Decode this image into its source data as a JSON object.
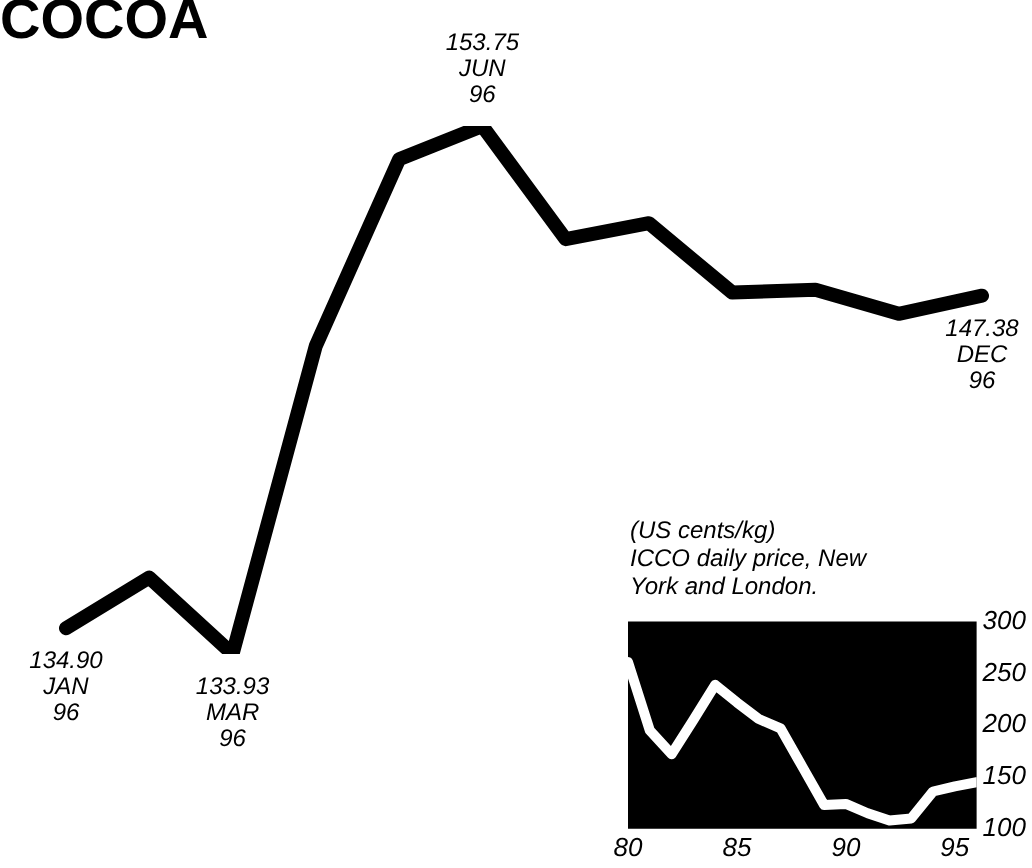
{
  "chart_data": [
    {
      "type": "line",
      "title": "COCOA",
      "color": "#000000",
      "tick_labels": false,
      "marker": "none",
      "categories": [
        "JAN 96",
        null,
        "MAR 96",
        null,
        null,
        "JUN 96",
        null,
        null,
        null,
        null,
        null,
        "DEC 96"
      ],
      "values": [
        134.9,
        136.8,
        133.93,
        145.5,
        152.5,
        153.75,
        149.5,
        150.1,
        147.5,
        147.6,
        146.7,
        147.38
      ],
      "value_labels": [
        "134.90",
        null,
        "133.93",
        null,
        null,
        "153.75",
        null,
        null,
        null,
        null,
        null,
        "147.38"
      ]
    },
    {
      "type": "line",
      "title": "ICCO daily price, New York and London.",
      "ylabel": "(US cents/kg)",
      "color": "#ffffff",
      "marker": "none",
      "grid": false,
      "x": [
        80,
        81,
        82,
        83,
        84,
        85,
        86,
        87,
        88,
        89,
        90,
        91,
        92,
        93,
        94,
        95,
        96
      ],
      "values": [
        261,
        195,
        172,
        205,
        239,
        222,
        206,
        197,
        160,
        123,
        124,
        115,
        108,
        110,
        136,
        141,
        145
      ],
      "xlim": [
        80,
        96
      ],
      "xticks": [
        80,
        85,
        90,
        95
      ],
      "ylim": [
        100,
        300
      ],
      "yticks": [
        100,
        150,
        200,
        250,
        300
      ]
    }
  ]
}
